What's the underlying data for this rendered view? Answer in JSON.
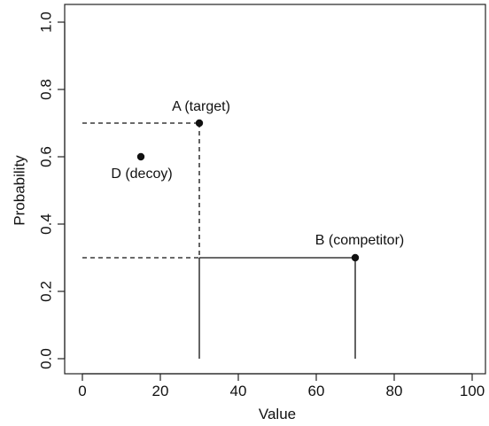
{
  "chart_data": {
    "type": "scatter",
    "title": "",
    "xlabel": "Value",
    "ylabel": "Probability",
    "xlim": [
      0,
      100
    ],
    "ylim": [
      0,
      1.0
    ],
    "x_ticks": [
      "0",
      "20",
      "40",
      "60",
      "80",
      "100"
    ],
    "y_ticks": [
      "0.0",
      "0.2",
      "0.4",
      "0.6",
      "0.8",
      "1.0"
    ],
    "grid": false,
    "points": [
      {
        "label": "A (target)",
        "x": 30,
        "y": 0.7
      },
      {
        "label": "B (competitor)",
        "x": 70,
        "y": 0.3
      },
      {
        "label": "D (decoy)",
        "x": 15,
        "y": 0.6
      }
    ],
    "reference_lines": [
      {
        "style": "dashed",
        "from": [
          0,
          0.7
        ],
        "to": [
          30,
          0.7
        ]
      },
      {
        "style": "dashed",
        "from": [
          30,
          0.7
        ],
        "to": [
          30,
          0.3
        ]
      },
      {
        "style": "dashed",
        "from": [
          0,
          0.3
        ],
        "to": [
          30,
          0.3
        ]
      },
      {
        "style": "solid",
        "from": [
          30,
          0.3
        ],
        "to": [
          70,
          0.3
        ]
      },
      {
        "style": "solid",
        "from": [
          30,
          0.3
        ],
        "to": [
          30,
          0
        ]
      },
      {
        "style": "solid",
        "from": [
          70,
          0.3
        ],
        "to": [
          70,
          0
        ]
      }
    ],
    "colors": {
      "ink": "#111111",
      "background": "#ffffff"
    }
  }
}
